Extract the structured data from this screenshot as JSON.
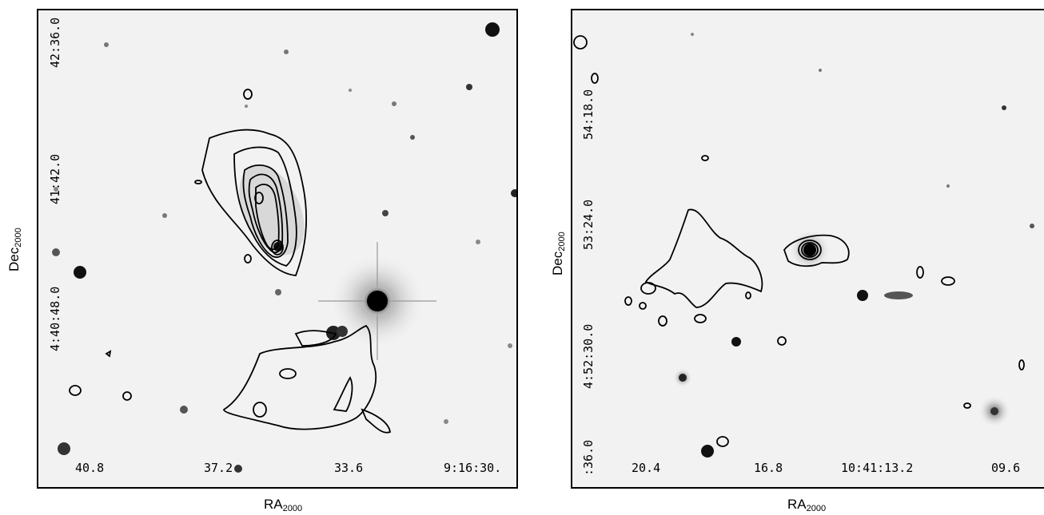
{
  "panels": [
    {
      "x_axis_label": "RA",
      "x_axis_sub": "2000",
      "y_axis_label": "Dec",
      "y_axis_sub": "2000",
      "x_ticks": [
        "40.8",
        "37.2",
        "33.6",
        "9:16:30."
      ],
      "y_ticks": [
        "42:36.0",
        "41:42.0",
        "4:40:48.0"
      ]
    },
    {
      "x_axis_label": "RA",
      "x_axis_sub": "2000",
      "y_axis_label": "Dec",
      "y_axis_sub": "2000",
      "x_ticks": [
        "20.4",
        "16.8",
        "10:41:13.2",
        "09.6"
      ],
      "y_ticks": [
        "54:18.0",
        "53:24.0",
        "4:52:30.0",
        ":36.0"
      ]
    }
  ]
}
